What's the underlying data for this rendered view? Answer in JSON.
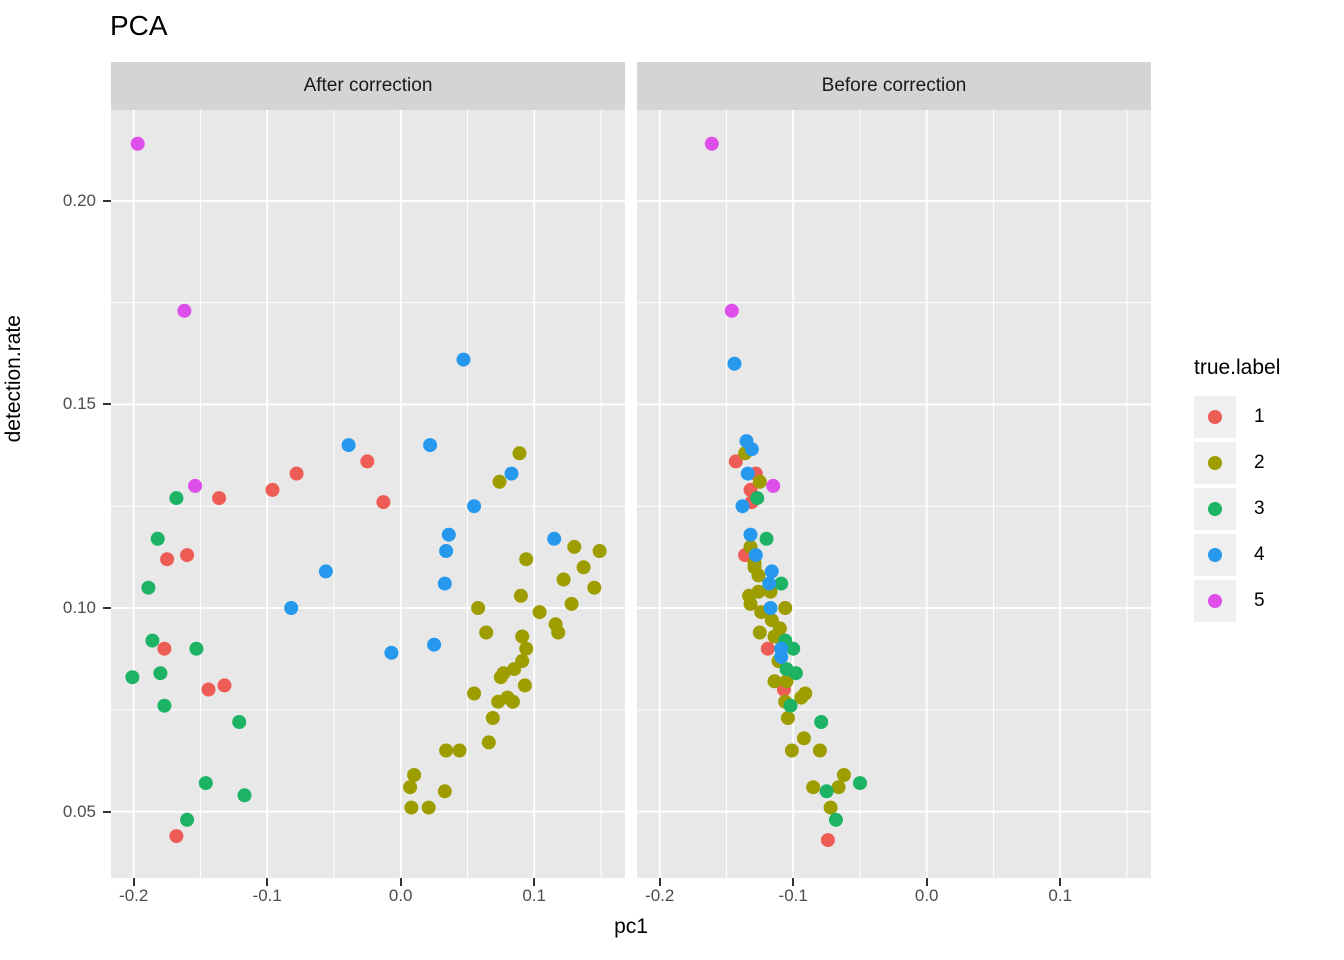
{
  "chart_data": {
    "type": "scatter",
    "title": "PCA",
    "xlabel": "pc1",
    "ylabel": "detection.rate",
    "legend_title": "true.label",
    "legend_position": "right",
    "grid": true,
    "xlim": [
      -0.217,
      0.168
    ],
    "ylim": [
      0.0337,
      0.2223
    ],
    "x_ticks": [
      {
        "v": -0.2,
        "label": "-0.2"
      },
      {
        "v": -0.1,
        "label": "-0.1"
      },
      {
        "v": 0.0,
        "label": "0.0"
      },
      {
        "v": 0.1,
        "label": "0.1"
      }
    ],
    "y_ticks": [
      {
        "v": 0.05,
        "label": "0.05"
      },
      {
        "v": 0.1,
        "label": "0.10"
      },
      {
        "v": 0.15,
        "label": "0.15"
      },
      {
        "v": 0.2,
        "label": "0.20"
      }
    ],
    "series_labels": [
      "1",
      "2",
      "3",
      "4",
      "5"
    ],
    "colors": {
      "1": "#ee5c56",
      "2": "#9e9d00",
      "3": "#1cb365",
      "4": "#2699ee",
      "5": "#dd4eeb"
    },
    "facets": [
      {
        "name": "After correction",
        "points": [
          [
            -0.025,
            0.136,
            "1"
          ],
          [
            -0.078,
            0.133,
            "1"
          ],
          [
            -0.096,
            0.129,
            "1"
          ],
          [
            -0.136,
            0.127,
            "1"
          ],
          [
            -0.013,
            0.126,
            "1"
          ],
          [
            -0.16,
            0.113,
            "1"
          ],
          [
            -0.175,
            0.112,
            "1"
          ],
          [
            -0.177,
            0.09,
            "1"
          ],
          [
            -0.132,
            0.081,
            "1"
          ],
          [
            -0.144,
            0.08,
            "1"
          ],
          [
            -0.168,
            0.044,
            "1"
          ],
          [
            0.089,
            0.138,
            "2"
          ],
          [
            0.074,
            0.131,
            "2"
          ],
          [
            0.13,
            0.115,
            "2"
          ],
          [
            0.149,
            0.114,
            "2"
          ],
          [
            0.094,
            0.112,
            "2"
          ],
          [
            0.137,
            0.11,
            "2"
          ],
          [
            0.122,
            0.107,
            "2"
          ],
          [
            0.145,
            0.105,
            "2"
          ],
          [
            0.09,
            0.103,
            "2"
          ],
          [
            0.128,
            0.101,
            "2"
          ],
          [
            0.058,
            0.1,
            "2"
          ],
          [
            0.104,
            0.099,
            "2"
          ],
          [
            0.116,
            0.096,
            "2"
          ],
          [
            0.118,
            0.094,
            "2"
          ],
          [
            0.064,
            0.094,
            "2"
          ],
          [
            0.091,
            0.093,
            "2"
          ],
          [
            0.094,
            0.09,
            "2"
          ],
          [
            0.091,
            0.087,
            "2"
          ],
          [
            0.085,
            0.085,
            "2"
          ],
          [
            0.077,
            0.084,
            "2"
          ],
          [
            0.075,
            0.083,
            "2"
          ],
          [
            0.093,
            0.081,
            "2"
          ],
          [
            0.055,
            0.079,
            "2"
          ],
          [
            0.08,
            0.078,
            "2"
          ],
          [
            0.084,
            0.077,
            "2"
          ],
          [
            0.073,
            0.077,
            "2"
          ],
          [
            0.069,
            0.073,
            "2"
          ],
          [
            0.066,
            0.067,
            "2"
          ],
          [
            0.034,
            0.065,
            "2"
          ],
          [
            0.044,
            0.065,
            "2"
          ],
          [
            0.01,
            0.059,
            "2"
          ],
          [
            0.007,
            0.056,
            "2"
          ],
          [
            0.033,
            0.055,
            "2"
          ],
          [
            0.008,
            0.051,
            "2"
          ],
          [
            0.021,
            0.051,
            "2"
          ],
          [
            -0.168,
            0.127,
            "3"
          ],
          [
            -0.182,
            0.117,
            "3"
          ],
          [
            -0.189,
            0.105,
            "3"
          ],
          [
            -0.186,
            0.092,
            "3"
          ],
          [
            -0.153,
            0.09,
            "3"
          ],
          [
            -0.18,
            0.084,
            "3"
          ],
          [
            -0.201,
            0.083,
            "3"
          ],
          [
            -0.177,
            0.076,
            "3"
          ],
          [
            -0.121,
            0.072,
            "3"
          ],
          [
            -0.146,
            0.057,
            "3"
          ],
          [
            -0.117,
            0.054,
            "3"
          ],
          [
            -0.16,
            0.048,
            "3"
          ],
          [
            0.047,
            0.161,
            "4"
          ],
          [
            -0.039,
            0.14,
            "4"
          ],
          [
            0.022,
            0.14,
            "4"
          ],
          [
            0.083,
            0.133,
            "4"
          ],
          [
            0.055,
            0.125,
            "4"
          ],
          [
            0.036,
            0.118,
            "4"
          ],
          [
            0.115,
            0.117,
            "4"
          ],
          [
            0.034,
            0.114,
            "4"
          ],
          [
            -0.056,
            0.109,
            "4"
          ],
          [
            0.033,
            0.106,
            "4"
          ],
          [
            -0.082,
            0.1,
            "4"
          ],
          [
            0.025,
            0.091,
            "4"
          ],
          [
            -0.007,
            0.089,
            "4"
          ],
          [
            -0.197,
            0.214,
            "5"
          ],
          [
            -0.162,
            0.173,
            "5"
          ],
          [
            -0.154,
            0.13,
            "5"
          ]
        ]
      },
      {
        "name": "Before correction",
        "points": [
          [
            -0.143,
            0.136,
            "1"
          ],
          [
            -0.128,
            0.133,
            "1"
          ],
          [
            -0.132,
            0.129,
            "1"
          ],
          [
            -0.131,
            0.126,
            "1"
          ],
          [
            -0.136,
            0.113,
            "1"
          ],
          [
            -0.119,
            0.09,
            "1"
          ],
          [
            -0.107,
            0.08,
            "1"
          ],
          [
            -0.074,
            0.043,
            "1"
          ],
          [
            -0.136,
            0.138,
            "2"
          ],
          [
            -0.125,
            0.131,
            "2"
          ],
          [
            -0.132,
            0.115,
            "2"
          ],
          [
            -0.129,
            0.111,
            "2"
          ],
          [
            -0.129,
            0.11,
            "2"
          ],
          [
            -0.126,
            0.108,
            "2"
          ],
          [
            -0.126,
            0.104,
            "2"
          ],
          [
            -0.117,
            0.104,
            "2"
          ],
          [
            -0.133,
            0.103,
            "2"
          ],
          [
            -0.132,
            0.101,
            "2"
          ],
          [
            -0.106,
            0.1,
            "2"
          ],
          [
            -0.124,
            0.099,
            "2"
          ],
          [
            -0.116,
            0.097,
            "2"
          ],
          [
            -0.11,
            0.095,
            "2"
          ],
          [
            -0.125,
            0.094,
            "2"
          ],
          [
            -0.114,
            0.093,
            "2"
          ],
          [
            -0.111,
            0.087,
            "2"
          ],
          [
            -0.114,
            0.082,
            "2"
          ],
          [
            -0.105,
            0.082,
            "2"
          ],
          [
            -0.091,
            0.079,
            "2"
          ],
          [
            -0.094,
            0.078,
            "2"
          ],
          [
            -0.106,
            0.077,
            "2"
          ],
          [
            -0.104,
            0.073,
            "2"
          ],
          [
            -0.092,
            0.068,
            "2"
          ],
          [
            -0.101,
            0.065,
            "2"
          ],
          [
            -0.08,
            0.065,
            "2"
          ],
          [
            -0.062,
            0.059,
            "2"
          ],
          [
            -0.085,
            0.056,
            "2"
          ],
          [
            -0.066,
            0.056,
            "2"
          ],
          [
            -0.072,
            0.051,
            "2"
          ],
          [
            -0.127,
            0.127,
            "3"
          ],
          [
            -0.12,
            0.117,
            "3"
          ],
          [
            -0.109,
            0.106,
            "3"
          ],
          [
            -0.106,
            0.092,
            "3"
          ],
          [
            -0.1,
            0.09,
            "3"
          ],
          [
            -0.105,
            0.085,
            "3"
          ],
          [
            -0.098,
            0.084,
            "3"
          ],
          [
            -0.102,
            0.076,
            "3"
          ],
          [
            -0.079,
            0.072,
            "3"
          ],
          [
            -0.05,
            0.057,
            "3"
          ],
          [
            -0.075,
            0.055,
            "3"
          ],
          [
            -0.068,
            0.048,
            "3"
          ],
          [
            -0.144,
            0.16,
            "4"
          ],
          [
            -0.135,
            0.141,
            "4"
          ],
          [
            -0.131,
            0.139,
            "4"
          ],
          [
            -0.134,
            0.133,
            "4"
          ],
          [
            -0.138,
            0.125,
            "4"
          ],
          [
            -0.132,
            0.118,
            "4"
          ],
          [
            -0.128,
            0.113,
            "4"
          ],
          [
            -0.116,
            0.109,
            "4"
          ],
          [
            -0.118,
            0.106,
            "4"
          ],
          [
            -0.117,
            0.1,
            "4"
          ],
          [
            -0.109,
            0.09,
            "4"
          ],
          [
            -0.109,
            0.088,
            "4"
          ],
          [
            -0.161,
            0.214,
            "5"
          ],
          [
            -0.146,
            0.173,
            "5"
          ],
          [
            -0.115,
            0.13,
            "5"
          ]
        ]
      }
    ]
  },
  "theme": {
    "panel_bg": "#e8e8e8",
    "strip_bg": "#d4d4d4",
    "grid_color": "#ffffff",
    "tick_color": "#333333",
    "tick_label_color": "#4d4d4d",
    "text_color": "#000000",
    "legend_key_bg": "#efefef"
  }
}
